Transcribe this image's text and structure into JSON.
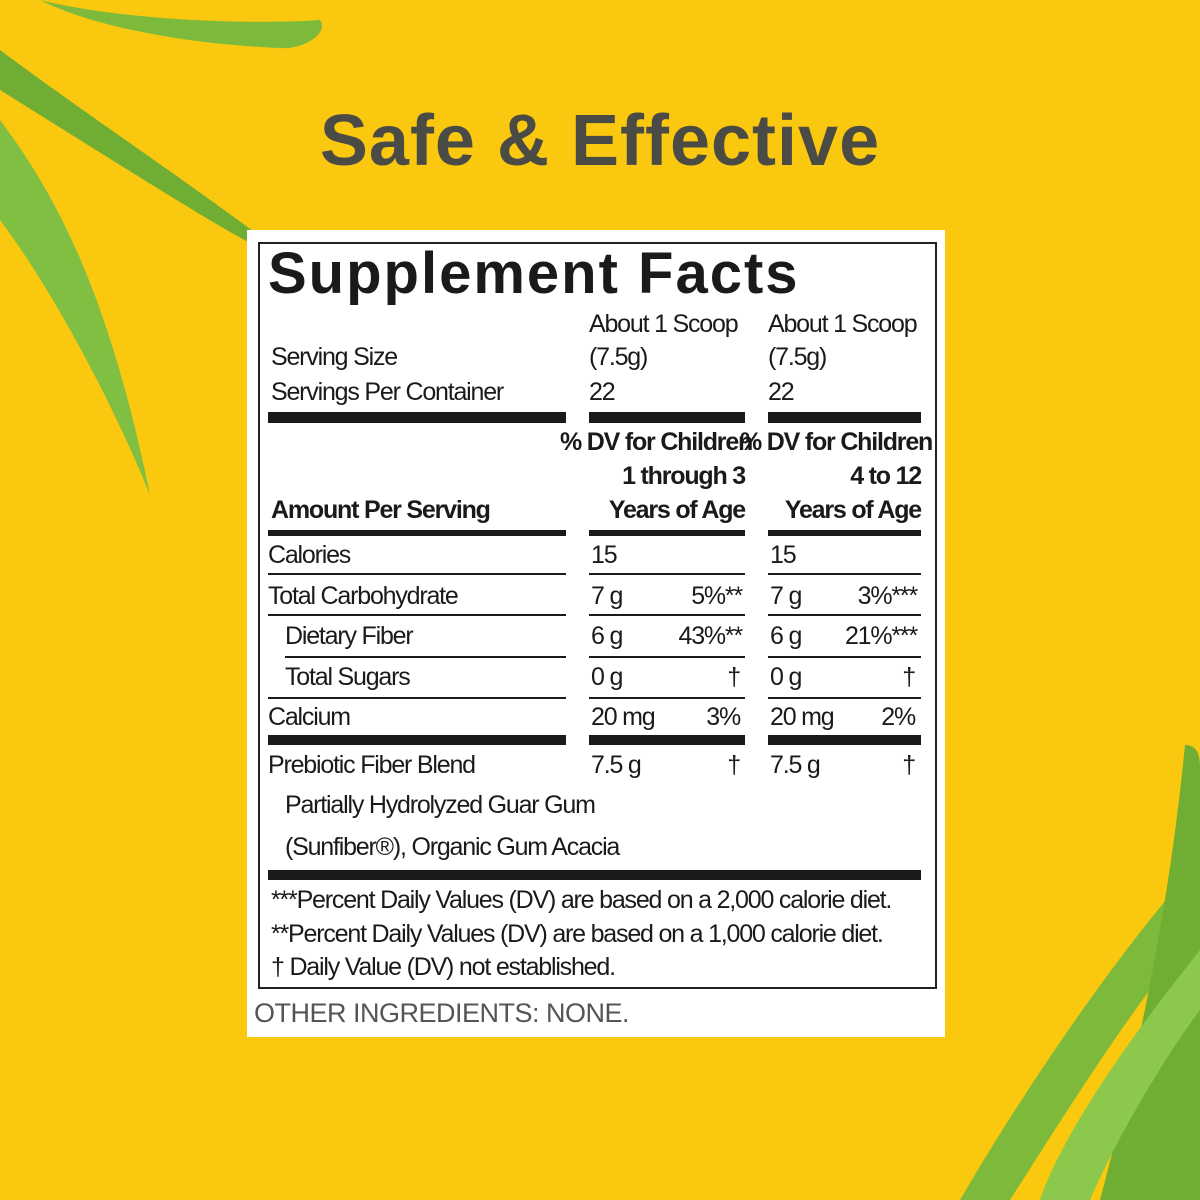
{
  "headline": "Safe & Effective",
  "label": {
    "title": "Supplement Facts",
    "serving_size_label": "Serving Size",
    "servings_per_container_label": "Servings Per Container",
    "columns": [
      {
        "serving_line1": "About 1 Scoop",
        "serving_line2": "(7.5g)",
        "servings": "22",
        "dv_line1": "% DV for Children",
        "dv_line2": "1 through 3",
        "dv_line3": "Years of Age"
      },
      {
        "serving_line1": "About 1 Scoop",
        "serving_line2": "(7.5g)",
        "servings": "22",
        "dv_line1": "% DV for Children",
        "dv_line2": "4 to 12",
        "dv_line3": "Years of Age"
      }
    ],
    "amount_per_serving": "Amount Per Serving",
    "rows": [
      {
        "name": "Calories",
        "c1_amount": "15",
        "c1_dv": "",
        "c2_amount": "15",
        "c2_dv": ""
      },
      {
        "name": "Total Carbohydrate",
        "c1_amount": "7 g",
        "c1_dv": "5%**",
        "c2_amount": "7 g",
        "c2_dv": "3%***"
      },
      {
        "name": "Dietary Fiber",
        "c1_amount": "6 g",
        "c1_dv": "43%**",
        "c2_amount": "6 g",
        "c2_dv": "21%***"
      },
      {
        "name": "Total Sugars",
        "c1_amount": "0 g",
        "c1_dv": "†",
        "c2_amount": "0 g",
        "c2_dv": "†"
      },
      {
        "name": "Calcium",
        "c1_amount": "20 mg",
        "c1_dv": "3%",
        "c2_amount": "20 mg",
        "c2_dv": "2%"
      },
      {
        "name": "Prebiotic Fiber Blend",
        "c1_amount": "7.5 g",
        "c1_dv": "†",
        "c2_amount": "7.5 g",
        "c2_dv": "†"
      }
    ],
    "blend_line1": "Partially Hydrolyzed Guar Gum",
    "blend_line2": "(Sunfiber®), Organic Gum Acacia",
    "footnotes": [
      "***Percent Daily Values (DV) are based on a 2,000 calorie diet.",
      "**Percent Daily Values (DV) are based on a 1,000 calorie diet.",
      "† Daily Value (DV) not established."
    ],
    "other_ingredients": "OTHER INGREDIENTS: NONE."
  },
  "colors": {
    "background": "#FAC80F",
    "leaf": "#7DBA3C",
    "headline": "#4B4B45"
  }
}
